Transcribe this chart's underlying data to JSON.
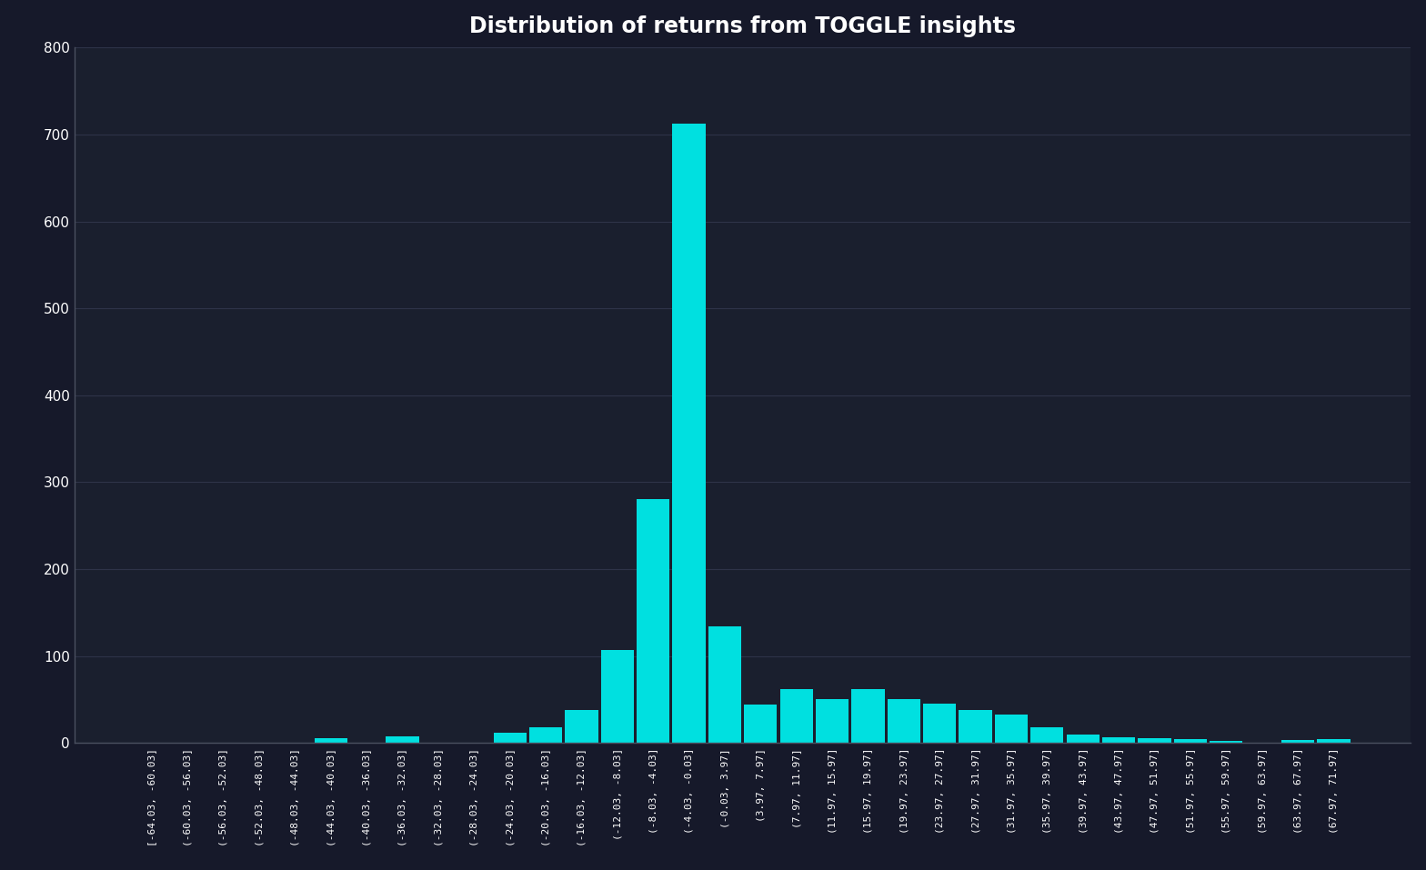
{
  "title": "Distribution of returns from TOGGLE insights",
  "background_color": "#16192a",
  "plot_bg_color": "#1a1f2e",
  "bar_color": "#00e0e0",
  "text_color": "#ffffff",
  "grid_color": "#2e3348",
  "ylim": [
    0,
    800
  ],
  "yticks": [
    0,
    100,
    200,
    300,
    400,
    500,
    600,
    700,
    800
  ],
  "categories": [
    "[-64.03, -60.03]",
    "(-60.03, -56.03]",
    "(-56.03, -52.03]",
    "(-52.03, -48.03]",
    "(-48.03, -44.03]",
    "(-44.03, -40.03]",
    "(-40.03, -36.03]",
    "(-36.03, -32.03]",
    "(-32.03, -28.03]",
    "(-28.03, -24.03]",
    "(-24.03, -20.03]",
    "(-20.03, -16.03]",
    "(-16.03, -12.03]",
    "(-12.03, -8.03]",
    "(-8.03, -4.03]",
    "(-4.03, -0.03]",
    "(-0.03, 3.97]",
    "(3.97, 7.97]",
    "(7.97, 11.97]",
    "(11.97, 15.97]",
    "(15.97, 19.97]",
    "(19.97, 23.97]",
    "(23.97, 27.97]",
    "(27.97, 31.97]",
    "(31.97, 35.97]",
    "(35.97, 39.97]",
    "(39.97, 43.97]",
    "(43.97, 47.97]",
    "(47.97, 51.97]",
    "(51.97, 55.97]",
    "(55.97, 59.97]",
    "(59.97, 63.97]",
    "(63.97, 67.97]",
    "(67.97, 71.97]"
  ],
  "values": [
    0,
    0,
    0,
    0,
    0,
    5,
    0,
    8,
    0,
    0,
    12,
    18,
    38,
    107,
    281,
    713,
    134,
    44,
    62,
    50,
    62,
    50,
    45,
    38,
    33,
    18,
    10,
    7,
    5,
    4,
    2,
    0,
    3,
    4
  ]
}
